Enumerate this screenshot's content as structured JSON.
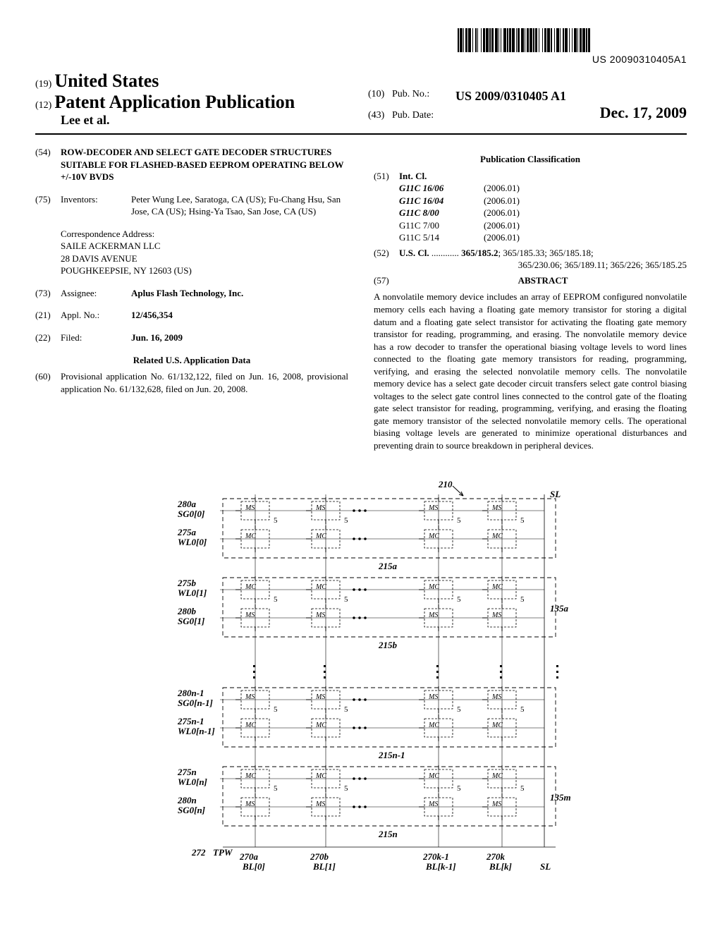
{
  "barcode": {
    "text": "US 20090310405A1",
    "bars": [
      2,
      1,
      4,
      1,
      1,
      2,
      3,
      1,
      4,
      2,
      1,
      3,
      2,
      1,
      1,
      4,
      1,
      2,
      3,
      1,
      4,
      1,
      2,
      1,
      3,
      2,
      4,
      1,
      1,
      2,
      1,
      3,
      4,
      1,
      2,
      1,
      3,
      1,
      4,
      2,
      1,
      1,
      3,
      2,
      4,
      1,
      1,
      2,
      3,
      1,
      4,
      1,
      2,
      1,
      3,
      2,
      1,
      4,
      1,
      2,
      3,
      1,
      4,
      1,
      2,
      3,
      1,
      2,
      4,
      1,
      1,
      3,
      2,
      1,
      4,
      2,
      1,
      3,
      1,
      2,
      4,
      1,
      1,
      2,
      3,
      1,
      4,
      1,
      2,
      1,
      3,
      2
    ]
  },
  "header": {
    "code19": "(19)",
    "country": "United States",
    "code12": "(12)",
    "pub_title": "Patent Application Publication",
    "inventors_short": "Lee et al.",
    "code10": "(10)",
    "pub_no_label": "Pub. No.:",
    "pub_no": "US 2009/0310405 A1",
    "code43": "(43)",
    "pub_date_label": "Pub. Date:",
    "pub_date": "Dec. 17, 2009"
  },
  "left": {
    "f54": {
      "code": "(54)",
      "title": "ROW-DECODER AND SELECT GATE DECODER STRUCTURES SUITABLE FOR FLASHED-BASED EEPROM OPERATING BELOW +/-10V BVDS"
    },
    "f75": {
      "code": "(75)",
      "label": "Inventors:",
      "body": "Peter Wung Lee, Saratoga, CA (US); Fu-Chang Hsu, San Jose, CA (US); Hsing-Ya Tsao, San Jose, CA (US)"
    },
    "corr": {
      "label": "Correspondence Address:",
      "line1": "SAILE ACKERMAN LLC",
      "line2": "28 DAVIS AVENUE",
      "line3": "POUGHKEEPSIE, NY 12603 (US)"
    },
    "f73": {
      "code": "(73)",
      "label": "Assignee:",
      "body": "Aplus Flash Technology, Inc."
    },
    "f21": {
      "code": "(21)",
      "label": "Appl. No.:",
      "body": "12/456,354"
    },
    "f22": {
      "code": "(22)",
      "label": "Filed:",
      "body": "Jun. 16, 2009"
    },
    "related_heading": "Related U.S. Application Data",
    "f60": {
      "code": "(60)",
      "body": "Provisional application No. 61/132,122, filed on Jun. 16, 2008, provisional application No. 61/132,628, filed on Jun. 20, 2008."
    }
  },
  "right": {
    "pubclass_heading": "Publication Classification",
    "f51": {
      "code": "(51)",
      "label": "Int. Cl.",
      "rows": [
        {
          "cls": "G11C 16/06",
          "year": "(2006.01)",
          "bold": true
        },
        {
          "cls": "G11C 16/04",
          "year": "(2006.01)",
          "bold": true
        },
        {
          "cls": "G11C 8/00",
          "year": "(2006.01)",
          "bold": true
        },
        {
          "cls": "G11C 7/00",
          "year": "(2006.01)",
          "bold": false
        },
        {
          "cls": "G11C 5/14",
          "year": "(2006.01)",
          "bold": false
        }
      ]
    },
    "f52": {
      "code": "(52)",
      "label": "U.S. Cl.",
      "dots": " ............ ",
      "line1_bold": "365/185.2",
      "line1_rest": "; 365/185.33; 365/185.18;",
      "line2": "365/230.06; 365/189.11; 365/226; 365/185.25"
    },
    "f57": {
      "code": "(57)",
      "heading": "ABSTRACT"
    },
    "abstract": "A nonvolatile memory device includes an array of EEPROM configured nonvolatile memory cells each having a floating gate memory transistor for storing a digital datum and a floating gate select transistor for activating the floating gate memory transistor for reading, programming, and erasing. The nonvolatile memory device has a row decoder to transfer the operational biasing voltage levels to word lines connected to the floating gate memory transistors for reading, programming, verifying, and erasing the selected nonvolatile memory cells. The nonvolatile memory device has a select gate decoder circuit transfers select gate control biasing voltages to the select gate control lines connected to the control gate of the floating gate select transistor for reading, programming, verifying, and erasing the floating gate memory transistor of the selected nonvolatile memory cells. The operational biasing voltage levels are generated to minimize operational disturbances and preventing drain to source breakdown in peripheral devices."
  },
  "figure": {
    "ref210": "210",
    "blocks": [
      {
        "ref": "215a",
        "sg": "SG0[0]",
        "sg_ref": "280a",
        "wl": "WL0[0]",
        "wl_ref": "275a",
        "right_ref": ""
      },
      {
        "ref": "215b",
        "sg": "SG0[1]",
        "sg_ref": "280b",
        "wl": "WL0[1]",
        "wl_ref": "275b",
        "right_ref": "135a"
      },
      {
        "ref": "215n-1",
        "sg": "SG0[n-1]",
        "sg_ref": "280n-1",
        "wl": "WL0[n-1]",
        "wl_ref": "275n-1",
        "right_ref": ""
      },
      {
        "ref": "215n",
        "sg": "SG0[n]",
        "sg_ref": "280n",
        "wl": "WL0[n]",
        "wl_ref": "275n",
        "right_ref": "135m"
      }
    ],
    "cell_ms": "MS",
    "cell_mc": "MC",
    "five": "5",
    "tpw": "TPW",
    "tpw_ref": "272",
    "sl": "SL",
    "bitlines": [
      {
        "ref": "270a",
        "label": "BL[0]"
      },
      {
        "ref": "270b",
        "label": "BL[1]"
      },
      {
        "ref": "270k-1",
        "label": "BL[k-1]"
      },
      {
        "ref": "270k",
        "label": "BL[k]"
      }
    ]
  }
}
